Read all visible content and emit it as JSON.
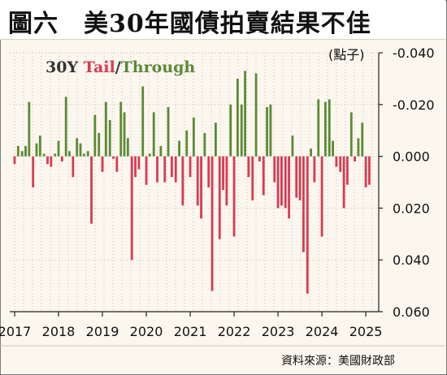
{
  "title": "圖六　美30年國債拍賣結果不佳",
  "unit_label": "(點子)",
  "source": "資料來源：美國財政部",
  "legend": {
    "prefix": "30Y",
    "tail": "Tail",
    "separator": "/",
    "through": "Through"
  },
  "colors": {
    "through": "#5b8a35",
    "tail": "#d93a52",
    "legend_prefix": "#333333",
    "legend_tail": "#d93a52",
    "legend_through": "#5b8a35"
  },
  "chart_data": {
    "type": "bar",
    "x_axis": {
      "range": [
        2017.0,
        2025.08
      ],
      "tick_labels": [
        "2017",
        "2018",
        "2019",
        "2020",
        "2021",
        "2022",
        "2023",
        "2024",
        "2025"
      ]
    },
    "y_axis": {
      "position": "right",
      "inverted": true,
      "range": [
        -0.04,
        0.06
      ],
      "ticks": [
        -0.04,
        -0.02,
        0.0,
        0.02,
        0.04,
        0.06
      ],
      "tick_labels": [
        "-0.040",
        "-0.020",
        "0.000",
        "0.020",
        "0.040",
        "0.060"
      ]
    },
    "grid": true,
    "legend_placement": "top-left",
    "series": [
      {
        "x": [
          2017.0,
          2017.08,
          2017.17,
          2017.25,
          2017.33,
          2017.42,
          2017.5,
          2017.58,
          2017.67,
          2017.75,
          2017.83,
          2017.92,
          2018.0,
          2018.08,
          2018.17,
          2018.25,
          2018.33,
          2018.42,
          2018.5,
          2018.58,
          2018.67,
          2018.75,
          2018.83,
          2018.92,
          2019.0,
          2019.08,
          2019.17,
          2019.25,
          2019.33,
          2019.42,
          2019.5,
          2019.58,
          2019.67,
          2019.75,
          2019.83,
          2019.92,
          2020.0,
          2020.08,
          2020.17,
          2020.25,
          2020.33,
          2020.42,
          2020.5,
          2020.58,
          2020.67,
          2020.75,
          2020.83,
          2020.92,
          2021.0,
          2021.08,
          2021.17,
          2021.25,
          2021.33,
          2021.42,
          2021.5,
          2021.58,
          2021.67,
          2021.75,
          2021.83,
          2021.92,
          2022.0,
          2022.08,
          2022.17,
          2022.25,
          2022.33,
          2022.42,
          2022.5,
          2022.58,
          2022.67,
          2022.75,
          2022.83,
          2022.92,
          2023.0,
          2023.08,
          2023.17,
          2023.25,
          2023.33,
          2023.42,
          2023.5,
          2023.58,
          2023.67,
          2023.75,
          2023.83,
          2023.92,
          2024.0,
          2024.08,
          2024.17,
          2024.25,
          2024.33,
          2024.42,
          2024.5,
          2024.58,
          2024.67,
          2024.75,
          2024.83,
          2024.92,
          2025.0,
          2025.08
        ],
        "values": [
          0.003,
          -0.004,
          -0.002,
          -0.004,
          -0.021,
          0.012,
          -0.005,
          -0.008,
          -0.001,
          0.003,
          0.004,
          -0.001,
          -0.006,
          0.002,
          -0.023,
          -0.002,
          0.008,
          -0.007,
          -0.005,
          -0.001,
          -0.002,
          0.026,
          -0.016,
          -0.009,
          0.006,
          -0.021,
          -0.014,
          0.001,
          0.006,
          -0.021,
          -0.017,
          -0.007,
          0.04,
          0.008,
          0.005,
          -0.027,
          0.011,
          -0.001,
          -0.017,
          0.01,
          -0.004,
          0.01,
          -0.019,
          0.008,
          0.01,
          -0.006,
          0.019,
          -0.01,
          0.008,
          -0.015,
          0.019,
          0.024,
          -0.009,
          0.012,
          0.052,
          -0.013,
          0.032,
          0.013,
          0.019,
          -0.02,
          0.031,
          -0.03,
          -0.02,
          -0.033,
          0.008,
          0.017,
          -0.032,
          0.002,
          0.015,
          -0.019,
          -0.02,
          0.01,
          0.02,
          0.019,
          0.02,
          0.024,
          -0.008,
          0.016,
          0.017,
          0.037,
          0.053,
          -0.003,
          0.01,
          -0.022,
          0.031,
          -0.021,
          -0.022,
          -0.006,
          0.004,
          0.006,
          0.02,
          0.011,
          -0.017,
          0.002,
          -0.007,
          -0.013,
          0.012,
          0.011
        ]
      }
    ]
  }
}
